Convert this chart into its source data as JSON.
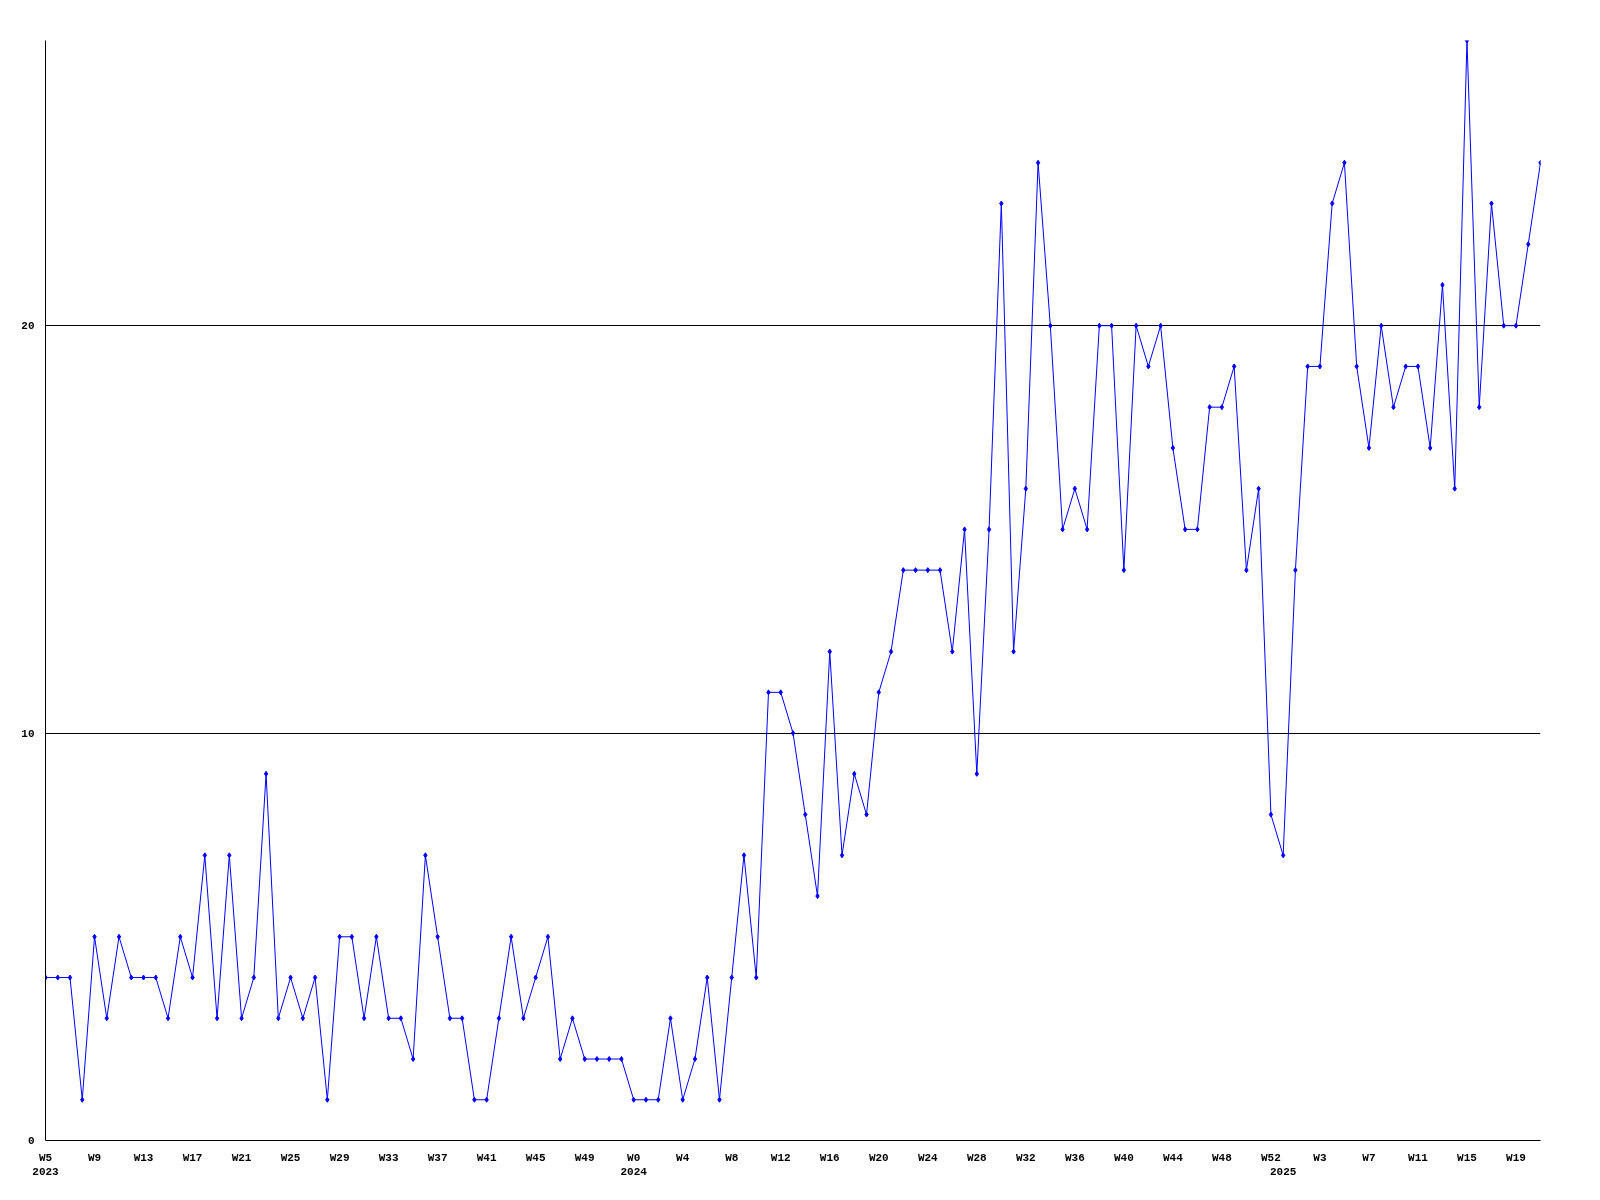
{
  "chart_data": {
    "type": "line",
    "marker": "diamond",
    "grid": "y",
    "categories": [
      "W5\n2023",
      null,
      null,
      null,
      "W9",
      null,
      null,
      null,
      "W13",
      null,
      null,
      null,
      "W17",
      null,
      null,
      null,
      "W21",
      null,
      null,
      null,
      "W25",
      null,
      null,
      null,
      "W29",
      null,
      null,
      null,
      "W33",
      null,
      null,
      null,
      "W37",
      null,
      null,
      null,
      "W41",
      null,
      null,
      null,
      "W45",
      null,
      null,
      null,
      "W49",
      null,
      null,
      null,
      "W0\n2024",
      null,
      null,
      null,
      "W4",
      null,
      null,
      null,
      "W8",
      null,
      null,
      null,
      "W12",
      null,
      null,
      null,
      "W16",
      null,
      null,
      null,
      "W20",
      null,
      null,
      null,
      "W24",
      null,
      null,
      null,
      "W28",
      null,
      null,
      null,
      "W32",
      null,
      null,
      null,
      "W36",
      null,
      null,
      null,
      "W40",
      null,
      null,
      null,
      "W44",
      null,
      null,
      null,
      "W48",
      null,
      null,
      null,
      "W52",
      "\n2025",
      null,
      null,
      "W3",
      null,
      null,
      null,
      "W7",
      null,
      null,
      null,
      "W11",
      null,
      null,
      null,
      "W15",
      null,
      null,
      null,
      "W19",
      null,
      null
    ],
    "series": [
      {
        "color": "#0000ff",
        "values": [
          4,
          4,
          4,
          1,
          5,
          3,
          5,
          4,
          4,
          4,
          3,
          5,
          4,
          7,
          3,
          7,
          3,
          4,
          9,
          3,
          4,
          3,
          4,
          1,
          5,
          5,
          3,
          5,
          3,
          3,
          2,
          7,
          5,
          3,
          3,
          1,
          1,
          3,
          5,
          3,
          4,
          5,
          2,
          3,
          2,
          2,
          2,
          2,
          1,
          1,
          1,
          3,
          1,
          2,
          4,
          1,
          4,
          7,
          4,
          11,
          11,
          10,
          8,
          6,
          12,
          7,
          9,
          8,
          11,
          12,
          14,
          14,
          14,
          14,
          12,
          15,
          9,
          15,
          23,
          12,
          16,
          24,
          20,
          15,
          16,
          15,
          20,
          20,
          14,
          20,
          19,
          20,
          17,
          15,
          15,
          18,
          18,
          19,
          14,
          16,
          8,
          7,
          14,
          19,
          19,
          23,
          24,
          19,
          17,
          20,
          18,
          19,
          19,
          17,
          21,
          16,
          27,
          18,
          23,
          20,
          20,
          22,
          24
        ]
      }
    ],
    "ylim": [
      0,
      27
    ],
    "yticks": [
      0,
      10,
      20
    ]
  }
}
